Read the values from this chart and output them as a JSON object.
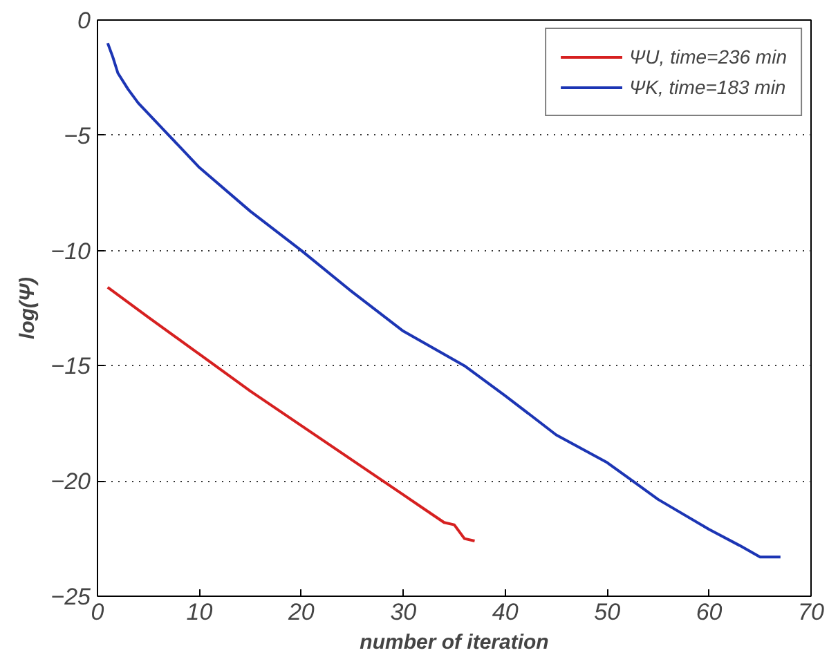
{
  "chart_data": {
    "type": "line",
    "xlabel": "number of iteration",
    "ylabel": "log(Ψ)",
    "xlim": [
      0,
      70
    ],
    "ylim": [
      -25,
      0
    ],
    "xticks": [
      0,
      10,
      20,
      30,
      40,
      50,
      60,
      70
    ],
    "yticks": [
      -25,
      -20,
      -15,
      -10,
      -5,
      0
    ],
    "grid": "y",
    "legend": "top right",
    "line_style": "solid",
    "marker": "none",
    "series": [
      {
        "name": "ΨU, time=236 min",
        "color": "#d62020",
        "x": [
          1,
          5,
          10,
          15,
          20,
          25,
          28,
          30,
          32,
          34,
          35,
          35.5,
          36,
          37
        ],
        "values": [
          -11.6,
          -12.9,
          -14.5,
          -16.1,
          -17.6,
          -19.1,
          -20.0,
          -20.6,
          -21.2,
          -21.8,
          -21.9,
          -22.2,
          -22.5,
          -22.6
        ]
      },
      {
        "name": "ΨK, time=183 min",
        "color": "#1c35b4",
        "x": [
          1,
          1.5,
          2,
          3,
          4,
          7,
          10,
          15,
          20,
          25,
          30,
          36,
          40,
          45,
          50,
          52.5,
          55,
          60,
          63,
          65,
          67
        ],
        "values": [
          -1.0,
          -1.6,
          -2.3,
          -3.0,
          -3.6,
          -5.0,
          -6.4,
          -8.3,
          -10.0,
          -11.8,
          -13.5,
          -15.0,
          -16.3,
          -18.0,
          -19.2,
          -20.0,
          -20.8,
          -22.1,
          -22.8,
          -23.3,
          -23.3
        ]
      }
    ]
  }
}
